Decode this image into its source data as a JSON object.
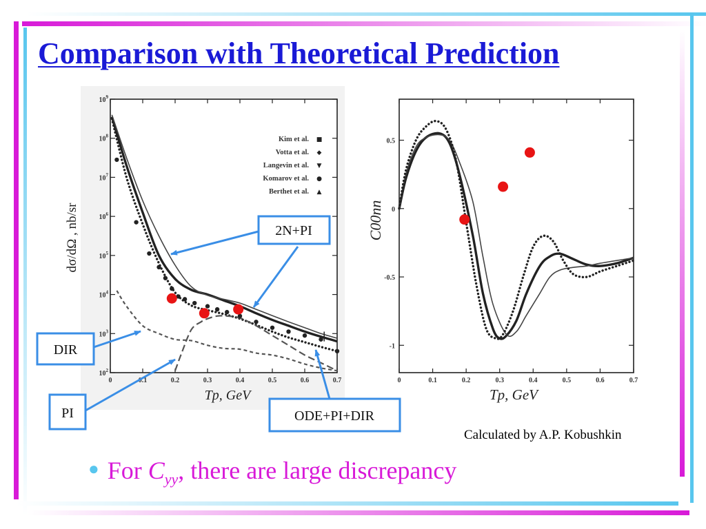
{
  "slide": {
    "title": "Comparison with Theoretical Prediction",
    "credit": "Calculated by A.P. Kobushkin",
    "bullet": {
      "prefix": "For ",
      "symbol": "C",
      "subscript": "yy",
      "suffix": ", there are large discrepancy"
    },
    "colors": {
      "title": "#1a1ad6",
      "bullet_text": "#d81ad8",
      "bullet_dot": "#58c6ee",
      "callout_border": "#3a8ee6",
      "markers": "#e81414",
      "accent_cyan": "#58c6ee",
      "accent_magenta": "#d81ad8"
    }
  },
  "callouts": [
    {
      "id": "2n-pi",
      "label": "2N+PI"
    },
    {
      "id": "dir",
      "label": "DIR"
    },
    {
      "id": "pi",
      "label": "PI"
    },
    {
      "id": "ode-pi-dir",
      "label": "ODE+PI+DIR"
    }
  ],
  "chart_data": [
    {
      "type": "line",
      "xlabel": "Tp, GeV",
      "ylabel": "dσ/dΩ , nb/sr",
      "log_y": true,
      "xlim": [
        0,
        0.7
      ],
      "ylim_log10": [
        2,
        9
      ],
      "x_ticks": [
        "0",
        "0.1",
        "0.2",
        "0.3",
        "0.4",
        "0.5",
        "0.6",
        "0.7"
      ],
      "y_ticks": [
        "10^2",
        "10^3",
        "10^4",
        "10^5",
        "10^6",
        "10^7",
        "10^8",
        "10^9"
      ],
      "legend_position": "top-right",
      "legend": [
        {
          "name": "Kim et al.",
          "symbol": "■"
        },
        {
          "name": "Votta et al.",
          "symbol": "◆"
        },
        {
          "name": "Langevin et al.",
          "symbol": "▼"
        },
        {
          "name": "Komarov et al.",
          "symbol": "●"
        },
        {
          "name": "Berthet et al.",
          "symbol": "▲"
        }
      ],
      "series": [
        {
          "name": "2N+PI",
          "style": "solid-thick",
          "x": [
            0.005,
            0.05,
            0.1,
            0.15,
            0.2,
            0.25,
            0.3,
            0.35,
            0.4,
            0.45,
            0.5,
            0.55,
            0.6,
            0.65,
            0.7
          ],
          "log10y": [
            8.55,
            7.3,
            6.1,
            5.0,
            4.4,
            4.12,
            4.0,
            3.85,
            3.7,
            3.52,
            3.35,
            3.2,
            3.05,
            2.92,
            2.8
          ]
        },
        {
          "style": "solid-thin",
          "x": [
            0.005,
            0.05,
            0.1,
            0.15,
            0.2,
            0.25,
            0.3,
            0.35,
            0.4,
            0.45,
            0.5,
            0.55,
            0.6,
            0.65,
            0.7
          ],
          "log10y": [
            8.6,
            7.5,
            6.4,
            5.5,
            4.75,
            4.2,
            3.98,
            3.88,
            3.78,
            3.62,
            3.46,
            3.3,
            3.15,
            3.0,
            2.88
          ]
        },
        {
          "name": "ODE+PI+DIR",
          "style": "dotted",
          "x": [
            0.005,
            0.05,
            0.1,
            0.15,
            0.2,
            0.25,
            0.3,
            0.35,
            0.4,
            0.45,
            0.5,
            0.55,
            0.6,
            0.65,
            0.7
          ],
          "log10y": [
            8.5,
            7.0,
            5.8,
            4.8,
            4.05,
            3.72,
            3.6,
            3.5,
            3.38,
            3.22,
            3.05,
            2.9,
            2.78,
            2.66,
            2.55
          ]
        },
        {
          "name": "PI",
          "style": "long-dash",
          "x": [
            0.2,
            0.22,
            0.25,
            0.28,
            0.3,
            0.33,
            0.36,
            0.4,
            0.45,
            0.5,
            0.55,
            0.6,
            0.65,
            0.7
          ],
          "log10y": [
            2.05,
            2.5,
            3.1,
            3.3,
            3.38,
            3.45,
            3.45,
            3.4,
            3.2,
            2.95,
            2.7,
            2.45,
            2.25,
            2.05
          ]
        },
        {
          "name": "DIR",
          "style": "short-dash",
          "x": [
            0.02,
            0.05,
            0.1,
            0.15,
            0.2,
            0.25,
            0.3,
            0.35,
            0.4,
            0.45,
            0.5,
            0.55,
            0.6,
            0.65,
            0.7
          ],
          "log10y": [
            4.1,
            3.7,
            3.2,
            3.0,
            2.85,
            2.82,
            2.7,
            2.62,
            2.6,
            2.5,
            2.45,
            2.35,
            2.22,
            2.12,
            2.05
          ]
        }
      ],
      "data_points": {
        "x": [
          0.02,
          0.08,
          0.12,
          0.15,
          0.17,
          0.19,
          0.21,
          0.23,
          0.26,
          0.3,
          0.33,
          0.36,
          0.4,
          0.45,
          0.5,
          0.55,
          0.6,
          0.65,
          0.7
        ],
        "log10y": [
          7.45,
          5.85,
          5.05,
          4.7,
          4.42,
          4.15,
          3.95,
          3.88,
          3.78,
          3.7,
          3.62,
          3.55,
          3.45,
          3.3,
          3.15,
          3.05,
          2.95,
          2.85,
          2.55
        ]
      },
      "markers": {
        "x": [
          0.19,
          0.29,
          0.395
        ],
        "log10y": [
          3.9,
          3.52,
          3.62
        ]
      }
    },
    {
      "type": "line",
      "xlabel": "Tp, GeV",
      "ylabel": "C00nn",
      "xlim": [
        0,
        0.7
      ],
      "ylim": [
        -1.2,
        0.8
      ],
      "x_ticks": [
        "0",
        "0.1",
        "0.2",
        "0.3",
        "0.4",
        "0.5",
        "0.6",
        "0.7"
      ],
      "y_ticks": [
        "0.5",
        "0",
        "-0.5",
        "-1"
      ],
      "series": [
        {
          "style": "solid-thick",
          "x": [
            0,
            0.02,
            0.05,
            0.08,
            0.12,
            0.15,
            0.18,
            0.22,
            0.25,
            0.28,
            0.3,
            0.32,
            0.35,
            0.38,
            0.42,
            0.45,
            0.48,
            0.52,
            0.56,
            0.6,
            0.65,
            0.7
          ],
          "y": [
            0,
            0.22,
            0.42,
            0.52,
            0.55,
            0.48,
            0.25,
            -0.2,
            -0.62,
            -0.88,
            -0.95,
            -0.93,
            -0.82,
            -0.62,
            -0.42,
            -0.35,
            -0.33,
            -0.37,
            -0.41,
            -0.42,
            -0.4,
            -0.36
          ]
        },
        {
          "style": "solid-thin",
          "x": [
            0,
            0.02,
            0.05,
            0.08,
            0.12,
            0.15,
            0.18,
            0.22,
            0.25,
            0.28,
            0.32,
            0.35,
            0.38,
            0.42,
            0.45,
            0.48,
            0.52,
            0.56,
            0.6,
            0.65,
            0.7
          ],
          "y": [
            0,
            0.25,
            0.45,
            0.52,
            0.54,
            0.5,
            0.34,
            0.05,
            -0.35,
            -0.7,
            -0.92,
            -0.9,
            -0.78,
            -0.62,
            -0.5,
            -0.45,
            -0.43,
            -0.42,
            -0.4,
            -0.38,
            -0.36
          ]
        },
        {
          "style": "dotted",
          "x": [
            0,
            0.02,
            0.05,
            0.08,
            0.11,
            0.14,
            0.17,
            0.2,
            0.23,
            0.26,
            0.29,
            0.31,
            0.34,
            0.37,
            0.4,
            0.43,
            0.46,
            0.49,
            0.52,
            0.56,
            0.6,
            0.65,
            0.7
          ],
          "y": [
            0,
            0.28,
            0.5,
            0.6,
            0.64,
            0.58,
            0.35,
            -0.1,
            -0.55,
            -0.88,
            -0.95,
            -0.92,
            -0.75,
            -0.5,
            -0.28,
            -0.2,
            -0.24,
            -0.38,
            -0.48,
            -0.5,
            -0.46,
            -0.42,
            -0.38
          ]
        }
      ],
      "markers": {
        "x": [
          0.195,
          0.31,
          0.39
        ],
        "y": [
          -0.08,
          0.16,
          0.41
        ]
      }
    }
  ]
}
